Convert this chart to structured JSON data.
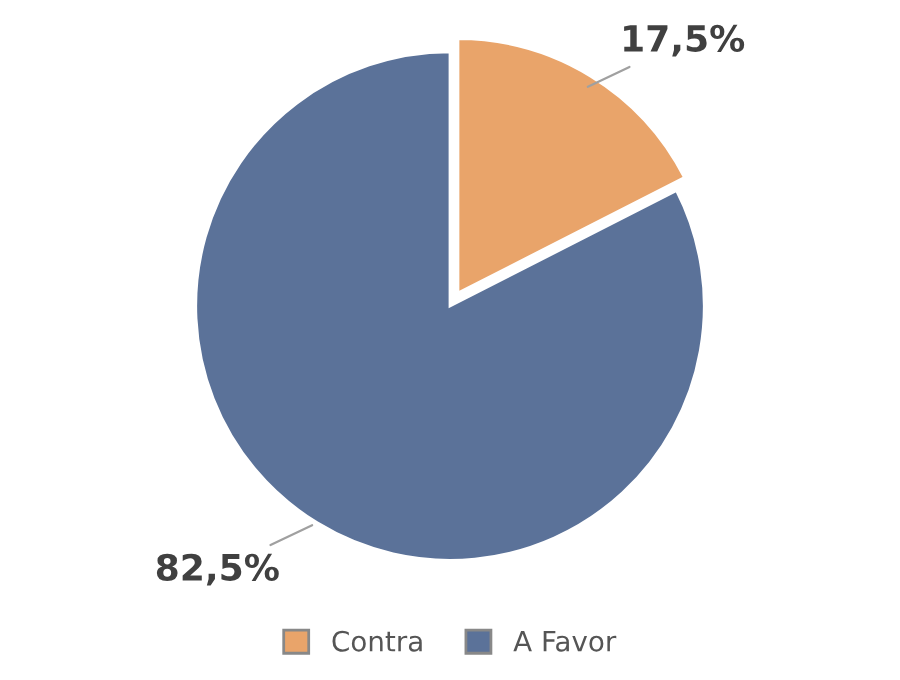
{
  "chart_data": {
    "type": "pie",
    "categories": [
      "Contra",
      "A Favor"
    ],
    "values": [
      17.5,
      82.5
    ],
    "colors": [
      "#e9a46a",
      "#5b7299"
    ],
    "value_labels": [
      "17,5%",
      "82,5%"
    ],
    "legend": "bottom"
  }
}
